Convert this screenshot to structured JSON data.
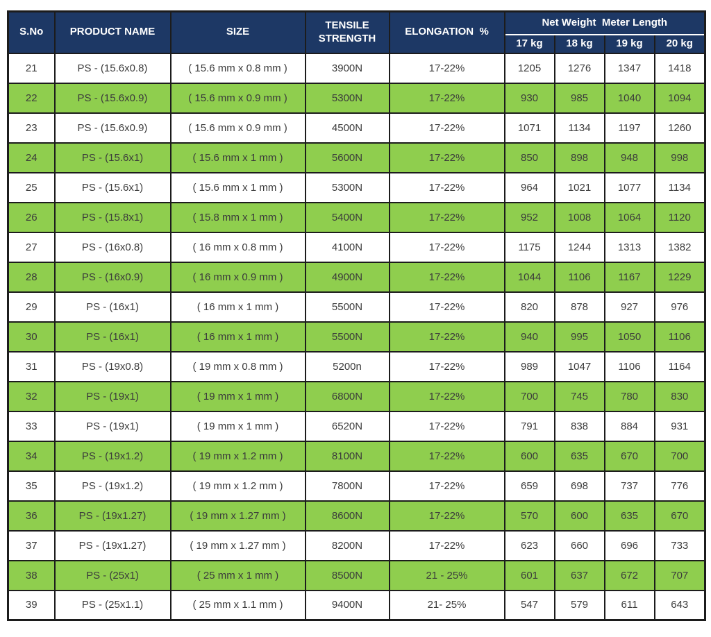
{
  "colors": {
    "header_bg": "#1d3865",
    "row_green": "#8fce4e",
    "row_white": "#ffffff",
    "border": "#1c1c1c",
    "text": "#3b3b3b",
    "header_text": "#ffffff"
  },
  "table": {
    "headers": {
      "s_no": "S.No",
      "product_name": "PRODUCT NAME",
      "size": "SIZE",
      "tensile_strength": "TENSILE STRENGTH",
      "elongation": "ELONGATION  %",
      "group": "Net Weight  Meter Length",
      "weights": [
        "17 kg",
        "18 kg",
        "19 kg",
        "20 kg"
      ]
    },
    "rows": [
      {
        "s_no": "21",
        "product_name": "PS - (15.6x0.8)",
        "size": "( 15.6 mm x 0.8 mm )",
        "tensile": "3900N",
        "elongation": "17-22%",
        "lengths": [
          "1205",
          "1276",
          "1347",
          "1418"
        ]
      },
      {
        "s_no": "22",
        "product_name": "PS - (15.6x0.9)",
        "size": "( 15.6 mm x 0.9 mm )",
        "tensile": "5300N",
        "elongation": "17-22%",
        "lengths": [
          "930",
          "985",
          "1040",
          "1094"
        ]
      },
      {
        "s_no": "23",
        "product_name": "PS - (15.6x0.9)",
        "size": "( 15.6 mm x 0.9 mm )",
        "tensile": "4500N",
        "elongation": "17-22%",
        "lengths": [
          "1071",
          "1134",
          "1197",
          "1260"
        ]
      },
      {
        "s_no": "24",
        "product_name": "PS - (15.6x1)",
        "size": "( 15.6 mm x 1 mm )",
        "tensile": "5600N",
        "elongation": "17-22%",
        "lengths": [
          "850",
          "898",
          "948",
          "998"
        ]
      },
      {
        "s_no": "25",
        "product_name": "PS - (15.6x1)",
        "size": "( 15.6 mm x 1 mm )",
        "tensile": "5300N",
        "elongation": "17-22%",
        "lengths": [
          "964",
          "1021",
          "1077",
          "1134"
        ]
      },
      {
        "s_no": "26",
        "product_name": "PS - (15.8x1)",
        "size": "( 15.8 mm x 1 mm )",
        "tensile": "5400N",
        "elongation": "17-22%",
        "lengths": [
          "952",
          "1008",
          "1064",
          "1120"
        ]
      },
      {
        "s_no": "27",
        "product_name": "PS - (16x0.8)",
        "size": "( 16 mm x 0.8 mm )",
        "tensile": "4100N",
        "elongation": "17-22%",
        "lengths": [
          "1175",
          "1244",
          "1313",
          "1382"
        ]
      },
      {
        "s_no": "28",
        "product_name": "PS - (16x0.9)",
        "size": "( 16 mm x 0.9 mm )",
        "tensile": "4900N",
        "elongation": "17-22%",
        "lengths": [
          "1044",
          "1106",
          "1167",
          "1229"
        ]
      },
      {
        "s_no": "29",
        "product_name": "PS - (16x1)",
        "size": "( 16 mm x 1 mm )",
        "tensile": "5500N",
        "elongation": "17-22%",
        "lengths": [
          "820",
          "878",
          "927",
          "976"
        ]
      },
      {
        "s_no": "30",
        "product_name": "PS - (16x1)",
        "size": "( 16 mm x 1 mm )",
        "tensile": "5500N",
        "elongation": "17-22%",
        "lengths": [
          "940",
          "995",
          "1050",
          "1106"
        ]
      },
      {
        "s_no": "31",
        "product_name": "PS - (19x0.8)",
        "size": "( 19 mm x 0.8 mm )",
        "tensile": "5200n",
        "elongation": "17-22%",
        "lengths": [
          "989",
          "1047",
          "1106",
          "1164"
        ]
      },
      {
        "s_no": "32",
        "product_name": "PS - (19x1)",
        "size": "( 19 mm x 1 mm )",
        "tensile": "6800N",
        "elongation": "17-22%",
        "lengths": [
          "700",
          "745",
          "780",
          "830"
        ]
      },
      {
        "s_no": "33",
        "product_name": "PS - (19x1)",
        "size": "( 19 mm x 1 mm )",
        "tensile": "6520N",
        "elongation": "17-22%",
        "lengths": [
          "791",
          "838",
          "884",
          "931"
        ]
      },
      {
        "s_no": "34",
        "product_name": "PS - (19x1.2)",
        "size": "( 19 mm x 1.2 mm )",
        "tensile": "8100N",
        "elongation": "17-22%",
        "lengths": [
          "600",
          "635",
          "670",
          "700"
        ]
      },
      {
        "s_no": "35",
        "product_name": "PS - (19x1.2)",
        "size": "( 19 mm x 1.2 mm )",
        "tensile": "7800N",
        "elongation": "17-22%",
        "lengths": [
          "659",
          "698",
          "737",
          "776"
        ]
      },
      {
        "s_no": "36",
        "product_name": "PS - (19x1.27)",
        "size": "( 19 mm x 1.27 mm )",
        "tensile": "8600N",
        "elongation": "17-22%",
        "lengths": [
          "570",
          "600",
          "635",
          "670"
        ]
      },
      {
        "s_no": "37",
        "product_name": "PS - (19x1.27)",
        "size": "( 19 mm x 1.27 mm )",
        "tensile": "8200N",
        "elongation": "17-22%",
        "lengths": [
          "623",
          "660",
          "696",
          "733"
        ]
      },
      {
        "s_no": "38",
        "product_name": "PS - (25x1)",
        "size": "( 25 mm x 1 mm )",
        "tensile": "8500N",
        "elongation": "21 - 25%",
        "lengths": [
          "601",
          "637",
          "672",
          "707"
        ]
      },
      {
        "s_no": "39",
        "product_name": "PS - (25x1.1)",
        "size": "( 25 mm x 1.1 mm )",
        "tensile": "9400N",
        "elongation": "21- 25%",
        "lengths": [
          "547",
          "579",
          "611",
          "643"
        ]
      }
    ]
  }
}
